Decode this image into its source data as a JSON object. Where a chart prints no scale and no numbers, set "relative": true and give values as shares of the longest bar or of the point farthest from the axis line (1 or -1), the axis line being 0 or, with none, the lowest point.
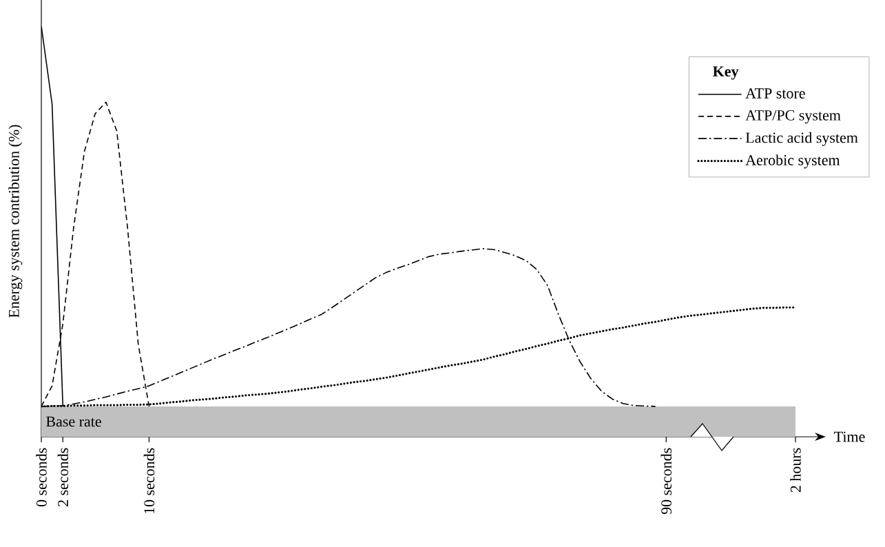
{
  "chart_data": {
    "type": "line",
    "relative": true,
    "xlabel": "Time",
    "ylabel": "Energy system contribution (%)",
    "legend_title": "Key",
    "legend": "top right",
    "grid": false,
    "categories": [
      "0 seconds",
      null,
      "2 seconds",
      null,
      null,
      null,
      null,
      null,
      null,
      null,
      "10 seconds",
      null,
      null,
      null,
      null,
      null,
      null,
      null,
      null,
      null,
      null,
      null,
      null,
      null,
      null,
      null,
      null,
      null,
      null,
      null,
      null,
      null,
      null,
      null,
      null,
      null,
      null,
      null,
      null,
      null,
      null,
      null,
      null,
      null,
      null,
      null,
      null,
      null,
      null,
      null,
      null,
      null,
      null,
      null,
      null,
      null,
      null,
      null,
      "90 seconds",
      null,
      null,
      null,
      null,
      null,
      null,
      null,
      null,
      null,
      null,
      null,
      "2 hours"
    ],
    "bands": [
      {
        "axis": "y",
        "from": 0,
        "to": 0.074,
        "label": "Base rate",
        "color": "#c0c0c0"
      }
    ],
    "series": [
      {
        "name": "ATP store",
        "color": "#000000",
        "line_style": "solid",
        "values": [
          1.0,
          0.81,
          0.074,
          null,
          null,
          null,
          null,
          null,
          null,
          null,
          null,
          null,
          null,
          null,
          null,
          null,
          null,
          null,
          null,
          null,
          null,
          null,
          null,
          null,
          null,
          null,
          null,
          null,
          null,
          null,
          null,
          null,
          null,
          null,
          null,
          null,
          null,
          null,
          null,
          null,
          null,
          null,
          null,
          null,
          null,
          null,
          null,
          null,
          null,
          null,
          null,
          null,
          null,
          null,
          null,
          null,
          null,
          null,
          null,
          null,
          null,
          null,
          null,
          null,
          null,
          null,
          null,
          null,
          null,
          null,
          null
        ]
      },
      {
        "name": "ATP/PC system",
        "color": "#000000",
        "line_style": "dashed",
        "values": [
          0.074,
          0.124,
          0.275,
          0.51,
          0.695,
          0.787,
          0.815,
          0.745,
          0.51,
          0.225,
          0.074,
          null,
          null,
          null,
          null,
          null,
          null,
          null,
          null,
          null,
          null,
          null,
          null,
          null,
          null,
          null,
          null,
          null,
          null,
          null,
          null,
          null,
          null,
          null,
          null,
          null,
          null,
          null,
          null,
          null,
          null,
          null,
          null,
          null,
          null,
          null,
          null,
          null,
          null,
          null,
          null,
          null,
          null,
          null,
          null,
          null,
          null,
          null,
          null,
          null,
          null,
          null,
          null,
          null,
          null,
          null,
          null,
          null,
          null,
          null,
          null
        ]
      },
      {
        "name": "Lactic acid system",
        "color": "#000000",
        "line_style": "dashdot",
        "values": [
          0.074,
          0.075,
          0.076,
          0.08,
          0.085,
          0.091,
          0.097,
          0.104,
          0.111,
          0.117,
          0.124,
          0.135,
          0.146,
          0.157,
          0.168,
          0.179,
          0.19,
          0.2,
          0.211,
          0.221,
          0.232,
          0.242,
          0.253,
          0.264,
          0.275,
          0.287,
          0.298,
          0.315,
          0.333,
          0.351,
          0.369,
          0.387,
          0.4,
          0.41,
          0.419,
          0.429,
          0.439,
          0.445,
          0.448,
          0.452,
          0.455,
          0.458,
          0.456,
          0.449,
          0.441,
          0.429,
          0.407,
          0.368,
          0.298,
          0.235,
          0.183,
          0.142,
          0.111,
          0.092,
          0.081,
          0.076,
          0.075,
          0.074,
          null,
          null,
          null,
          null,
          null,
          null,
          null,
          null,
          null,
          null,
          null,
          null,
          null
        ]
      },
      {
        "name": "Aerobic system",
        "color": "#000000",
        "line_style": "dotted",
        "values": [
          0.074,
          0.075,
          0.075,
          0.076,
          0.076,
          0.077,
          0.077,
          0.077,
          0.078,
          0.078,
          0.079,
          0.081,
          0.084,
          0.086,
          0.089,
          0.091,
          0.093,
          0.096,
          0.098,
          0.101,
          0.103,
          0.105,
          0.108,
          0.111,
          0.115,
          0.118,
          0.122,
          0.125,
          0.129,
          0.133,
          0.136,
          0.14,
          0.144,
          0.149,
          0.154,
          0.159,
          0.164,
          0.169,
          0.174,
          0.178,
          0.183,
          0.188,
          0.195,
          0.201,
          0.208,
          0.214,
          0.221,
          0.227,
          0.234,
          0.24,
          0.247,
          0.252,
          0.257,
          0.262,
          0.266,
          0.271,
          0.276,
          0.28,
          0.285,
          0.29,
          0.294,
          0.297,
          0.3,
          0.303,
          0.306,
          0.309,
          0.312,
          0.314,
          0.314,
          0.315,
          0.315
        ]
      }
    ]
  }
}
